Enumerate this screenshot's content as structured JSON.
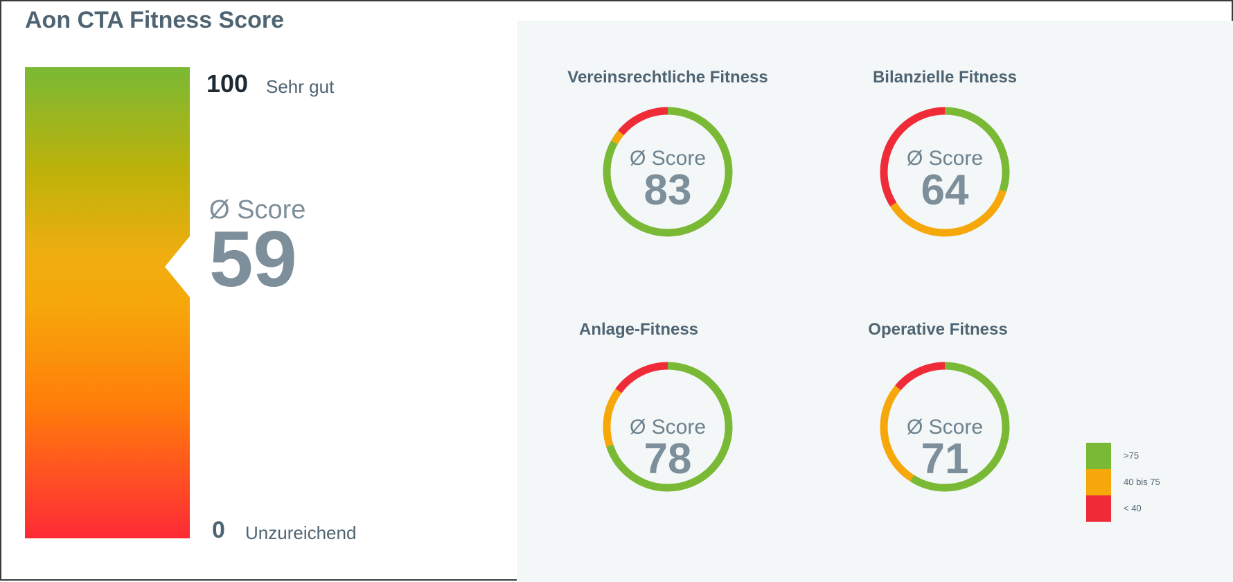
{
  "title": "Aon CTA Fitness Score",
  "overall": {
    "max_value": "100",
    "max_label": "Sehr gut",
    "min_value": "0",
    "min_label": "Unzureichend",
    "score_label": "Ø Score",
    "score_value": "59"
  },
  "colors": {
    "green": "#7ab935",
    "orange": "#f6a80a",
    "red": "#ef2b38"
  },
  "chart_data": [
    {
      "type": "pie",
      "title": "Vereinsrechtliche Fitness",
      "score_label": "Ø Score",
      "score": 83,
      "segments": [
        {
          "category": ">75",
          "share": 0.83
        },
        {
          "category": "40 bis 75",
          "share": 0.03
        },
        {
          "category": "< 40",
          "share": 0.14
        }
      ]
    },
    {
      "type": "pie",
      "title": "Bilanzielle Fitness",
      "score_label": "Ø Score",
      "score": 64,
      "segments": [
        {
          "category": ">75",
          "share": 0.3
        },
        {
          "category": "40 bis 75",
          "share": 0.36
        },
        {
          "category": "< 40",
          "share": 0.34
        }
      ]
    },
    {
      "type": "pie",
      "title": "Anlage-Fitness",
      "score_label": "Ø Score",
      "score": 78,
      "segments": [
        {
          "category": ">75",
          "share": 0.7
        },
        {
          "category": "40 bis 75",
          "share": 0.15
        },
        {
          "category": "< 40",
          "share": 0.15
        }
      ]
    },
    {
      "type": "pie",
      "title": "Operative Fitness",
      "score_label": "Ø Score",
      "score": 71,
      "segments": [
        {
          "category": ">75",
          "share": 0.59
        },
        {
          "category": "40 bis 75",
          "share": 0.27
        },
        {
          "category": "< 40",
          "share": 0.14
        }
      ]
    }
  ],
  "legend": [
    {
      "label": ">75",
      "color": "#7ab935"
    },
    {
      "label": "40 bis 75",
      "color": "#f6a80a"
    },
    {
      "label": "< 40",
      "color": "#ef2b38"
    }
  ]
}
